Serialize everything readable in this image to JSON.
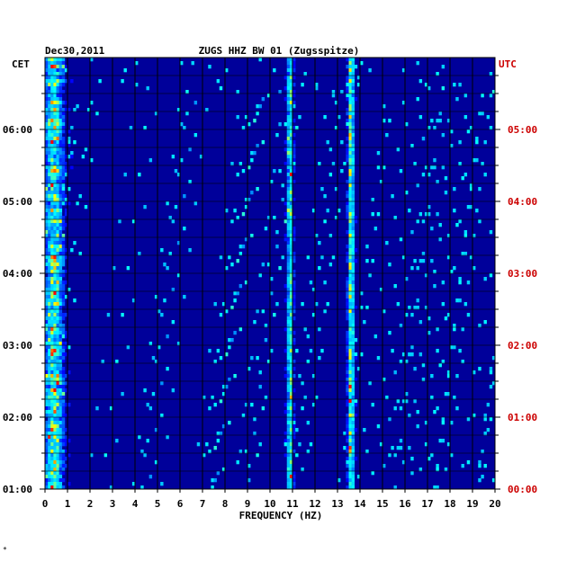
{
  "chart_data": {
    "type": "heatmap",
    "date": "Dec30,2011",
    "title": "ZUGS HHZ BW 01 (Zugsspitze)",
    "left_axis_label": "CET",
    "right_axis_label": "UTC",
    "xlabel": "FREQUENCY (HZ)",
    "xlim": [
      0,
      20
    ],
    "x_ticks": [
      "0",
      "1",
      "2",
      "3",
      "4",
      "5",
      "6",
      "7",
      "8",
      "9",
      "10",
      "11",
      "12",
      "13",
      "14",
      "15",
      "16",
      "17",
      "18",
      "19",
      "20"
    ],
    "left_time_range": [
      "01:00",
      "07:00"
    ],
    "left_tick_labels": [
      "01:00",
      "02:00",
      "03:00",
      "04:00",
      "05:00",
      "06:00"
    ],
    "right_tick_labels": [
      "00:00",
      "01:00",
      "02:00",
      "03:00",
      "04:00",
      "05:00"
    ],
    "dominant_bands_hz": [
      0.4,
      10.9,
      13.6
    ],
    "color_scale": [
      "#00008b",
      "#0000ff",
      "#00bfff",
      "#00ffff",
      "#ffff00",
      "#ff0000"
    ]
  },
  "footnote": "*"
}
